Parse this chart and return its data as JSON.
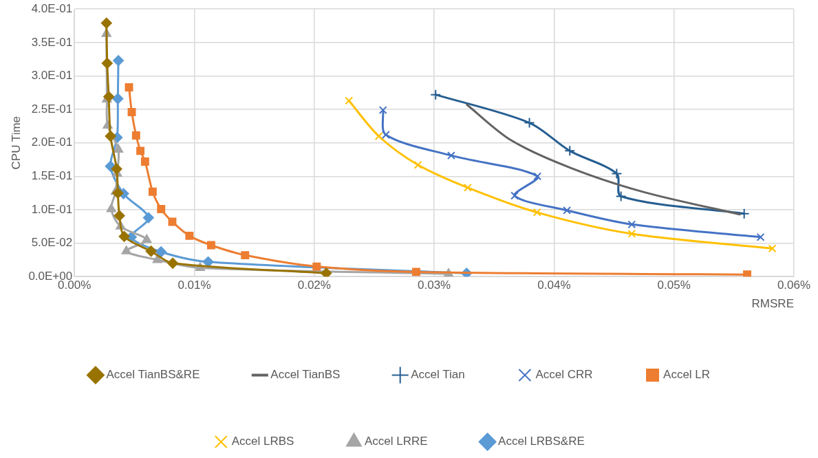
{
  "chart_data": {
    "type": "line",
    "xlabel": "RMSRE",
    "ylabel": "CPU Time",
    "grid": true,
    "legend": "bottom",
    "line_style": "solid",
    "xlim": [
      0,
      0.06
    ],
    "xticks": [
      {
        "value": 0,
        "label": "0.00%"
      },
      {
        "value": 0.01,
        "label": "0.01%"
      },
      {
        "value": 0.02,
        "label": "0.02%"
      },
      {
        "value": 0.03,
        "label": "0.03%"
      },
      {
        "value": 0.04,
        "label": "0.04%"
      },
      {
        "value": 0.05,
        "label": "0.05%"
      },
      {
        "value": 0.06,
        "label": "0.06%"
      }
    ],
    "ylim": [
      0,
      0.4
    ],
    "yticks": [
      {
        "value": 0,
        "label": "0.0E+00"
      },
      {
        "value": 0.05,
        "label": "5.0E-02"
      },
      {
        "value": 0.1,
        "label": "1.0E-01"
      },
      {
        "value": 0.15,
        "label": "1.5E-01"
      },
      {
        "value": 0.2,
        "label": "2.0E-01"
      },
      {
        "value": 0.25,
        "label": "2.5E-01"
      },
      {
        "value": 0.3,
        "label": "3.0E-01"
      },
      {
        "value": 0.35,
        "label": "3.5E-01"
      },
      {
        "value": 0.4,
        "label": "4.0E-01"
      }
    ],
    "series": [
      {
        "name": "Accel LRBS&RE",
        "color": "#5b9bd5",
        "marker": "diamond",
        "x": [
          0.00366,
          0.00362,
          0.00356,
          0.00301,
          0.00409,
          0.00617,
          0.00474,
          0.00722,
          0.01115,
          0.0327
        ],
        "values": [
          0.323,
          0.266,
          0.208,
          0.165,
          0.124,
          0.088,
          0.059,
          0.037,
          0.022,
          0.005
        ]
      },
      {
        "name": "Accel LRRE",
        "color": "#a5a5a5",
        "marker": "triangle",
        "x": [
          0.00267,
          0.00271,
          0.00277,
          0.00366,
          0.00356,
          0.00344,
          0.00307,
          0.00385,
          0.00603,
          0.00433,
          0.00692,
          0.01048,
          0.0312
        ],
        "values": [
          0.363,
          0.265,
          0.226,
          0.19,
          0.154,
          0.127,
          0.101,
          0.075,
          0.055,
          0.038,
          0.025,
          0.013,
          0.004
        ]
      },
      {
        "name": "Accel LRBS",
        "color": "#ffc000",
        "marker": "cross",
        "x": [
          0.02289,
          0.02538,
          0.02865,
          0.0328,
          0.03858,
          0.04648,
          0.0582
        ],
        "values": [
          0.263,
          0.21,
          0.167,
          0.133,
          0.096,
          0.064,
          0.042
        ]
      },
      {
        "name": "Accel LR",
        "color": "#ed7d31",
        "marker": "square",
        "x": [
          0.00455,
          0.00478,
          0.00514,
          0.0055,
          0.00589,
          0.00652,
          0.00723,
          0.00816,
          0.00959,
          0.0114,
          0.01423,
          0.0202,
          0.0285,
          0.0561
        ],
        "values": [
          0.283,
          0.246,
          0.211,
          0.188,
          0.172,
          0.127,
          0.101,
          0.082,
          0.061,
          0.047,
          0.032,
          0.015,
          0.007,
          0.003
        ]
      },
      {
        "name": "Accel CRR",
        "color": "#4472c4",
        "marker": "cross",
        "x": [
          0.02573,
          0.02597,
          0.03142,
          0.03861,
          0.03671,
          0.04107,
          0.04648,
          0.05722
        ],
        "values": [
          0.249,
          0.212,
          0.181,
          0.15,
          0.121,
          0.099,
          0.078,
          0.059
        ]
      },
      {
        "name": "Accel Tian",
        "color": "#255e91",
        "marker": "plus",
        "x": [
          0.03012,
          0.03794,
          0.04131,
          0.04522,
          0.04558,
          0.05585
        ],
        "values": [
          0.272,
          0.23,
          0.188,
          0.154,
          0.12,
          0.094
        ]
      },
      {
        "name": "Accel TianBS",
        "color": "#636363",
        "marker": "none",
        "x": [
          0.03273,
          0.0364,
          0.04145,
          0.04755,
          0.05549
        ],
        "values": [
          0.257,
          0.204,
          0.162,
          0.126,
          0.093
        ]
      },
      {
        "name": "Accel TianBS&RE",
        "color": "#997300",
        "marker": "diamond",
        "x": [
          0.00267,
          0.00273,
          0.00286,
          0.00301,
          0.00352,
          0.00362,
          0.00375,
          0.00415,
          0.00639,
          0.0082,
          0.021
        ],
        "values": [
          0.379,
          0.319,
          0.269,
          0.21,
          0.161,
          0.125,
          0.091,
          0.06,
          0.038,
          0.02,
          0.005
        ]
      }
    ]
  }
}
